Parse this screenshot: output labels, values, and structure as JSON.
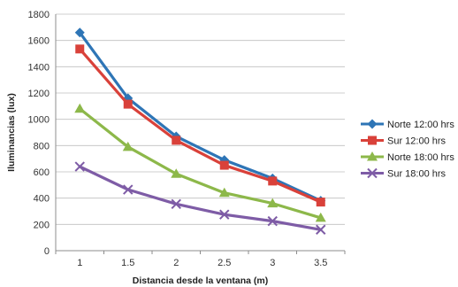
{
  "chart_data": {
    "type": "line",
    "xlabel": "Distancia desde la ventana (m)",
    "ylabel": "Iluminancias (lux)",
    "x": [
      "1",
      "1.5",
      "2",
      "2.5",
      "3",
      "3.5"
    ],
    "ylim": [
      0,
      1800
    ],
    "yticks": [
      0,
      200,
      400,
      600,
      800,
      1000,
      1200,
      1400,
      1600,
      1800
    ],
    "grid": true,
    "legend_position": "right",
    "series": [
      {
        "name": "Norte 12:00 hrs",
        "color": "#2E75B6",
        "marker": "diamond",
        "values": [
          1660,
          1160,
          870,
          690,
          550,
          380
        ]
      },
      {
        "name": "Sur 12:00 hrs",
        "color": "#D9413A",
        "marker": "square",
        "values": [
          1535,
          1115,
          840,
          650,
          530,
          370
        ]
      },
      {
        "name": "Norte 18:00 hrs",
        "color": "#8DB84A",
        "marker": "triangle",
        "values": [
          1080,
          790,
          585,
          440,
          360,
          250
        ]
      },
      {
        "name": "Sur 18:00 hrs",
        "color": "#7E5CA6",
        "marker": "x",
        "values": [
          640,
          465,
          355,
          275,
          225,
          160
        ]
      }
    ]
  }
}
